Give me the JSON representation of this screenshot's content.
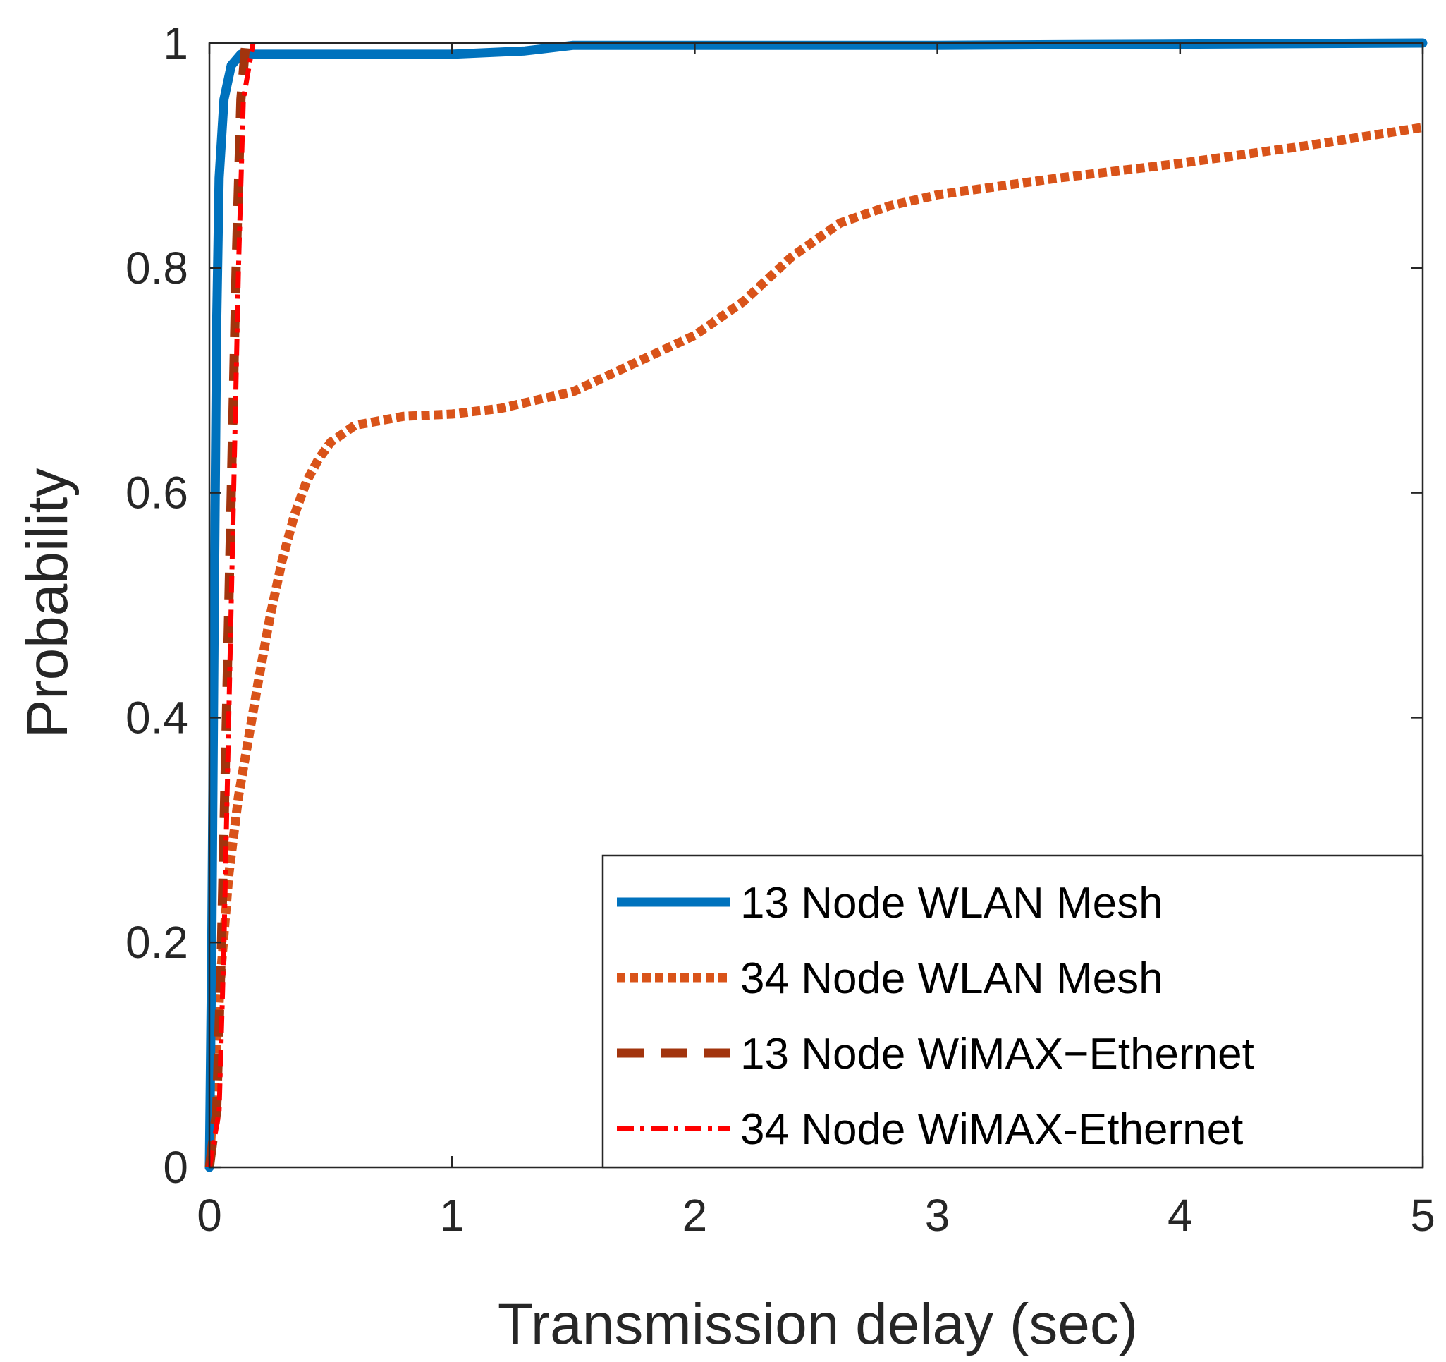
{
  "chart_data": {
    "type": "line",
    "title": "",
    "xlabel": "Transmission delay (sec)",
    "ylabel": "Probability",
    "xlim": [
      0,
      5
    ],
    "ylim": [
      0,
      1
    ],
    "x_ticks": [
      "0",
      "1",
      "2",
      "3",
      "4",
      "5"
    ],
    "y_ticks": [
      "0",
      "0.2",
      "0.4",
      "0.6",
      "0.8",
      "1"
    ],
    "grid": false,
    "legend_position": "bottom-right",
    "series": [
      {
        "name": "13 Node WLAN Mesh",
        "color": "#0072bd",
        "style": "solid",
        "points": [
          [
            0,
            0
          ],
          [
            0.01,
            0.2
          ],
          [
            0.02,
            0.5
          ],
          [
            0.03,
            0.75
          ],
          [
            0.04,
            0.88
          ],
          [
            0.06,
            0.95
          ],
          [
            0.09,
            0.98
          ],
          [
            0.13,
            0.99
          ],
          [
            0.2,
            0.99
          ],
          [
            0.5,
            0.99
          ],
          [
            1.0,
            0.99
          ],
          [
            1.3,
            0.993
          ],
          [
            1.5,
            0.998
          ],
          [
            2.0,
            0.998
          ],
          [
            3.0,
            0.998
          ],
          [
            4.0,
            0.999
          ],
          [
            5.0,
            1.0
          ]
        ]
      },
      {
        "name": "34 Node WLAN Mesh",
        "color": "#d95319",
        "style": "dotted",
        "points": [
          [
            0,
            0
          ],
          [
            0.02,
            0.08
          ],
          [
            0.05,
            0.18
          ],
          [
            0.08,
            0.26
          ],
          [
            0.12,
            0.33
          ],
          [
            0.16,
            0.38
          ],
          [
            0.2,
            0.43
          ],
          [
            0.25,
            0.49
          ],
          [
            0.3,
            0.54
          ],
          [
            0.35,
            0.58
          ],
          [
            0.4,
            0.61
          ],
          [
            0.45,
            0.63
          ],
          [
            0.5,
            0.645
          ],
          [
            0.6,
            0.66
          ],
          [
            0.8,
            0.668
          ],
          [
            1.0,
            0.67
          ],
          [
            1.2,
            0.675
          ],
          [
            1.5,
            0.69
          ],
          [
            1.8,
            0.72
          ],
          [
            2.0,
            0.74
          ],
          [
            2.2,
            0.77
          ],
          [
            2.4,
            0.81
          ],
          [
            2.6,
            0.84
          ],
          [
            2.8,
            0.855
          ],
          [
            3.0,
            0.865
          ],
          [
            3.5,
            0.88
          ],
          [
            4.0,
            0.893
          ],
          [
            4.5,
            0.908
          ],
          [
            5.0,
            0.925
          ]
        ]
      },
      {
        "name": "13 Node WiMAX−Ethernet",
        "color": "#a2340d",
        "style": "dashed",
        "points": [
          [
            0,
            0
          ],
          [
            0.03,
            0.05
          ],
          [
            0.05,
            0.2
          ],
          [
            0.07,
            0.4
          ],
          [
            0.09,
            0.6
          ],
          [
            0.11,
            0.8
          ],
          [
            0.13,
            0.95
          ],
          [
            0.15,
            1.0
          ]
        ]
      },
      {
        "name": "34 Node WiMAX-Ethernet",
        "color": "#ff0000",
        "style": "dashdot",
        "points": [
          [
            0,
            0
          ],
          [
            0.04,
            0.05
          ],
          [
            0.06,
            0.2
          ],
          [
            0.08,
            0.4
          ],
          [
            0.1,
            0.6
          ],
          [
            0.12,
            0.8
          ],
          [
            0.14,
            0.95
          ],
          [
            0.18,
            1.0
          ]
        ]
      }
    ]
  }
}
